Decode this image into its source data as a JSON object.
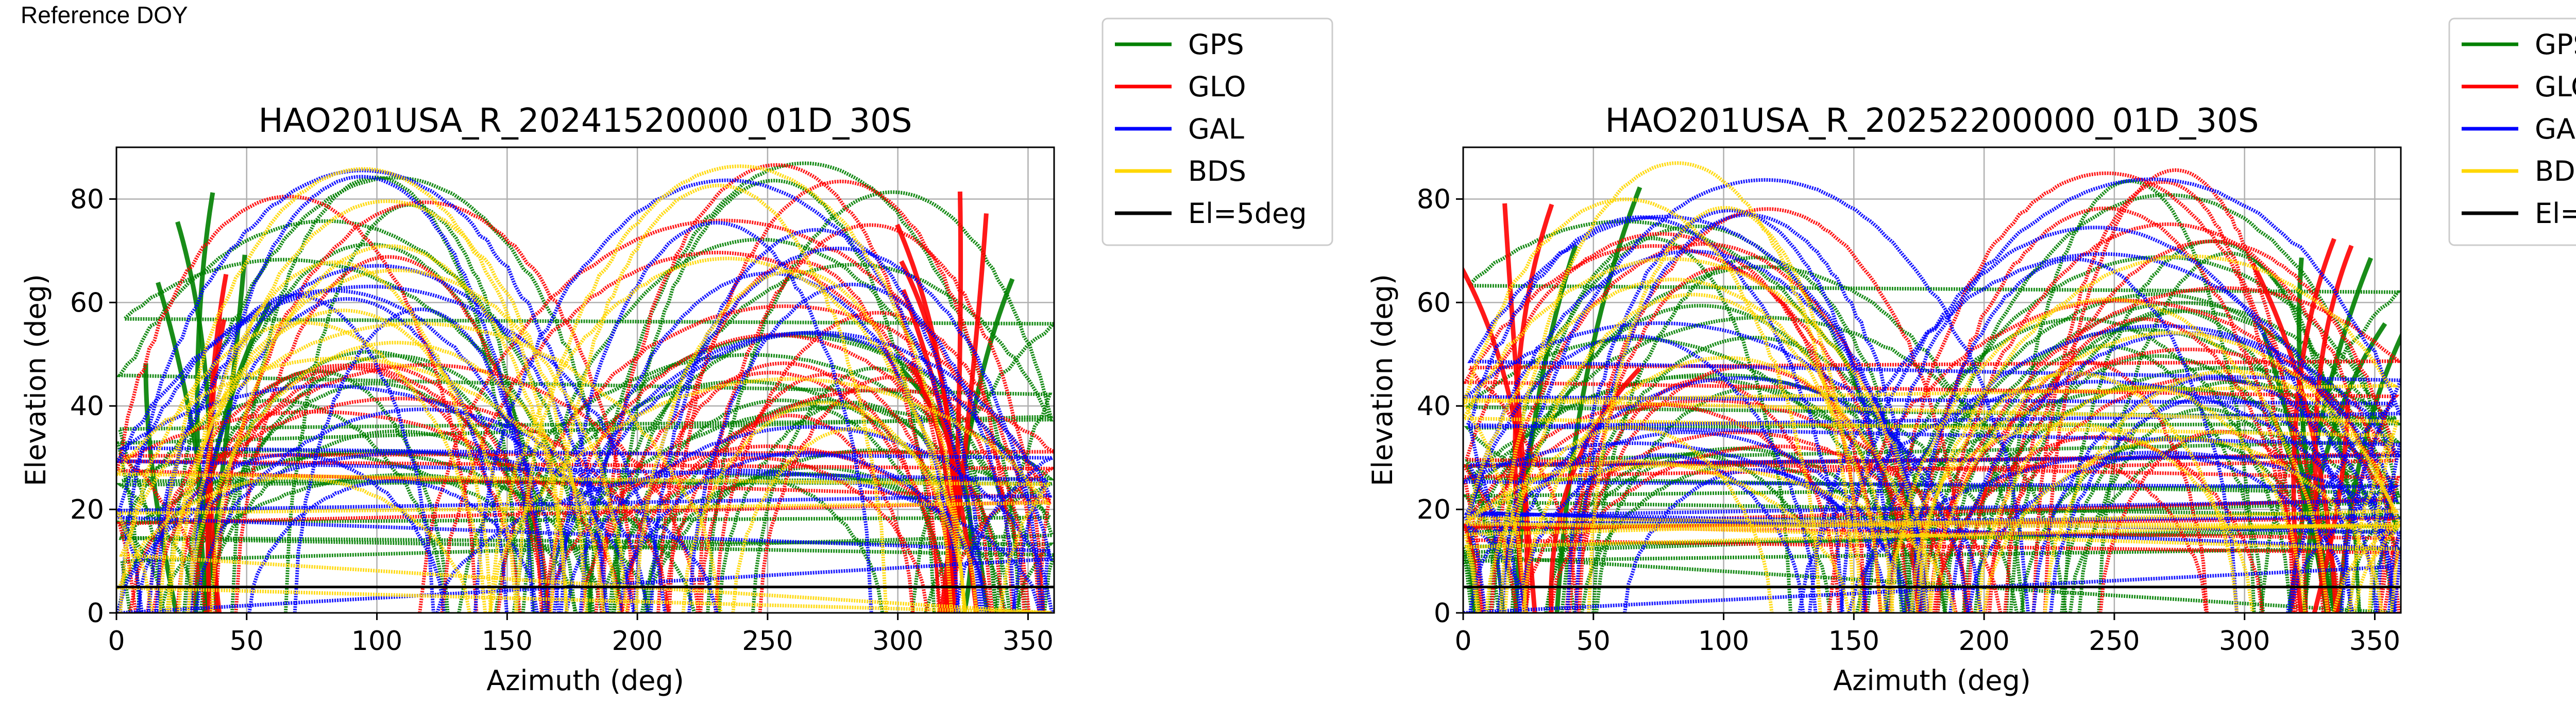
{
  "caption": "Reference DOY",
  "colors": {
    "GPS": "#008000",
    "GLO": "#ff0000",
    "GAL": "#0000ff",
    "BDS": "#ffd700",
    "El=5deg": "#000000"
  },
  "legend": [
    "GPS",
    "GLO",
    "GAL",
    "BDS",
    "El=5deg"
  ],
  "chart_data": [
    {
      "type": "scatter",
      "title": "HAO201USA_R_20241520000_01D_30S",
      "xlabel": "Azimuth (deg)",
      "ylabel": "Elevation (deg)",
      "xlim": [
        0,
        360
      ],
      "ylim": [
        0,
        90
      ],
      "xticks": [
        0,
        50,
        100,
        150,
        200,
        250,
        300,
        350
      ],
      "yticks": [
        0,
        20,
        40,
        60,
        80
      ],
      "grid": true,
      "legend_position": "outside-right",
      "reference_line": {
        "name": "El=5deg",
        "y": 5
      },
      "series_names": [
        "GPS",
        "GLO",
        "GAL",
        "BDS"
      ],
      "seed": 11
    },
    {
      "type": "scatter",
      "title": "HAO201USA_R_20252200000_01D_30S",
      "xlabel": "Azimuth (deg)",
      "ylabel": "Elevation (deg)",
      "xlim": [
        0,
        360
      ],
      "ylim": [
        0,
        90
      ],
      "xticks": [
        0,
        50,
        100,
        150,
        200,
        250,
        300,
        350
      ],
      "yticks": [
        0,
        20,
        40,
        60,
        80
      ],
      "grid": true,
      "legend_position": "outside-right",
      "reference_line": {
        "name": "El=5deg",
        "y": 5
      },
      "series_names": [
        "GPS",
        "GLO",
        "GAL",
        "BDS"
      ],
      "seed": 29
    }
  ]
}
